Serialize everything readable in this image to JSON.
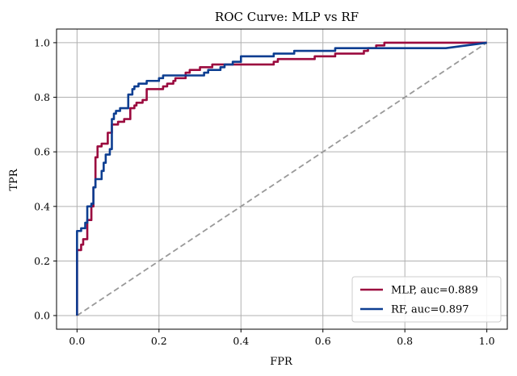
{
  "chart_data": {
    "type": "line",
    "title": "ROC Curve: MLP vs RF",
    "xlabel": "FPR",
    "ylabel": "TPR",
    "xlim": [
      -0.05,
      1.05
    ],
    "ylim": [
      -0.05,
      1.05
    ],
    "xticks": [
      0.0,
      0.2,
      0.4,
      0.6,
      0.8,
      1.0
    ],
    "xtick_labels": [
      "0.0",
      "0.2",
      "0.4",
      "0.6",
      "0.8",
      "1.0"
    ],
    "yticks": [
      0.0,
      0.2,
      0.4,
      0.6,
      0.8,
      1.0
    ],
    "ytick_labels": [
      "0.0",
      "0.2",
      "0.4",
      "0.6",
      "0.8",
      "1.0"
    ],
    "grid": true,
    "legend_position": "lower-right",
    "series": [
      {
        "name": "MLP, auc=0.889",
        "color": "#9b0b3f",
        "style": "solid",
        "points": [
          [
            0.0,
            0.0
          ],
          [
            0.0,
            0.08
          ],
          [
            0.0,
            0.24
          ],
          [
            0.01,
            0.24
          ],
          [
            0.01,
            0.26
          ],
          [
            0.015,
            0.26
          ],
          [
            0.015,
            0.28
          ],
          [
            0.025,
            0.28
          ],
          [
            0.025,
            0.35
          ],
          [
            0.035,
            0.35
          ],
          [
            0.035,
            0.4
          ],
          [
            0.04,
            0.4
          ],
          [
            0.04,
            0.47
          ],
          [
            0.045,
            0.47
          ],
          [
            0.045,
            0.58
          ],
          [
            0.05,
            0.58
          ],
          [
            0.05,
            0.62
          ],
          [
            0.06,
            0.62
          ],
          [
            0.06,
            0.63
          ],
          [
            0.075,
            0.63
          ],
          [
            0.075,
            0.67
          ],
          [
            0.085,
            0.67
          ],
          [
            0.085,
            0.7
          ],
          [
            0.1,
            0.7
          ],
          [
            0.1,
            0.71
          ],
          [
            0.115,
            0.71
          ],
          [
            0.115,
            0.72
          ],
          [
            0.13,
            0.72
          ],
          [
            0.13,
            0.76
          ],
          [
            0.14,
            0.76
          ],
          [
            0.14,
            0.77
          ],
          [
            0.145,
            0.77
          ],
          [
            0.145,
            0.78
          ],
          [
            0.16,
            0.78
          ],
          [
            0.16,
            0.79
          ],
          [
            0.17,
            0.79
          ],
          [
            0.17,
            0.83
          ],
          [
            0.21,
            0.83
          ],
          [
            0.21,
            0.84
          ],
          [
            0.22,
            0.84
          ],
          [
            0.22,
            0.85
          ],
          [
            0.235,
            0.85
          ],
          [
            0.235,
            0.86
          ],
          [
            0.24,
            0.86
          ],
          [
            0.24,
            0.87
          ],
          [
            0.265,
            0.87
          ],
          [
            0.265,
            0.89
          ],
          [
            0.275,
            0.89
          ],
          [
            0.275,
            0.9
          ],
          [
            0.3,
            0.9
          ],
          [
            0.3,
            0.91
          ],
          [
            0.33,
            0.91
          ],
          [
            0.33,
            0.92
          ],
          [
            0.48,
            0.92
          ],
          [
            0.48,
            0.93
          ],
          [
            0.49,
            0.93
          ],
          [
            0.49,
            0.94
          ],
          [
            0.58,
            0.94
          ],
          [
            0.58,
            0.95
          ],
          [
            0.63,
            0.95
          ],
          [
            0.63,
            0.96
          ],
          [
            0.7,
            0.96
          ],
          [
            0.7,
            0.97
          ],
          [
            0.71,
            0.97
          ],
          [
            0.71,
            0.98
          ],
          [
            0.73,
            0.98
          ],
          [
            0.73,
            0.99
          ],
          [
            0.75,
            0.99
          ],
          [
            0.75,
            1.0
          ],
          [
            1.0,
            1.0
          ]
        ]
      },
      {
        "name": "RF, auc=0.897",
        "color": "#0d3e91",
        "style": "solid",
        "points": [
          [
            0.0,
            0.0
          ],
          [
            0.0,
            0.31
          ],
          [
            0.01,
            0.31
          ],
          [
            0.01,
            0.32
          ],
          [
            0.02,
            0.32
          ],
          [
            0.02,
            0.34
          ],
          [
            0.025,
            0.34
          ],
          [
            0.025,
            0.4
          ],
          [
            0.035,
            0.4
          ],
          [
            0.035,
            0.41
          ],
          [
            0.04,
            0.41
          ],
          [
            0.04,
            0.47
          ],
          [
            0.045,
            0.47
          ],
          [
            0.045,
            0.5
          ],
          [
            0.06,
            0.5
          ],
          [
            0.06,
            0.53
          ],
          [
            0.065,
            0.53
          ],
          [
            0.065,
            0.56
          ],
          [
            0.07,
            0.56
          ],
          [
            0.07,
            0.59
          ],
          [
            0.08,
            0.59
          ],
          [
            0.08,
            0.61
          ],
          [
            0.085,
            0.61
          ],
          [
            0.085,
            0.72
          ],
          [
            0.09,
            0.72
          ],
          [
            0.09,
            0.74
          ],
          [
            0.095,
            0.74
          ],
          [
            0.095,
            0.75
          ],
          [
            0.105,
            0.75
          ],
          [
            0.105,
            0.76
          ],
          [
            0.125,
            0.76
          ],
          [
            0.125,
            0.81
          ],
          [
            0.135,
            0.81
          ],
          [
            0.135,
            0.83
          ],
          [
            0.14,
            0.83
          ],
          [
            0.14,
            0.84
          ],
          [
            0.15,
            0.84
          ],
          [
            0.15,
            0.85
          ],
          [
            0.17,
            0.85
          ],
          [
            0.17,
            0.86
          ],
          [
            0.2,
            0.86
          ],
          [
            0.2,
            0.87
          ],
          [
            0.21,
            0.87
          ],
          [
            0.21,
            0.88
          ],
          [
            0.31,
            0.88
          ],
          [
            0.31,
            0.89
          ],
          [
            0.32,
            0.89
          ],
          [
            0.32,
            0.9
          ],
          [
            0.35,
            0.9
          ],
          [
            0.35,
            0.91
          ],
          [
            0.36,
            0.91
          ],
          [
            0.36,
            0.92
          ],
          [
            0.38,
            0.92
          ],
          [
            0.38,
            0.93
          ],
          [
            0.4,
            0.93
          ],
          [
            0.4,
            0.95
          ],
          [
            0.48,
            0.95
          ],
          [
            0.48,
            0.96
          ],
          [
            0.53,
            0.96
          ],
          [
            0.53,
            0.97
          ],
          [
            0.63,
            0.97
          ],
          [
            0.63,
            0.98
          ],
          [
            0.64,
            0.98
          ],
          [
            0.64,
            0.98
          ],
          [
            0.9,
            0.98
          ],
          [
            0.95,
            0.99
          ],
          [
            1.0,
            1.0
          ]
        ]
      },
      {
        "name": "",
        "color": "#999999",
        "style": "dashed",
        "points": [
          [
            0.0,
            0.0
          ],
          [
            1.0,
            1.0
          ]
        ]
      }
    ]
  }
}
